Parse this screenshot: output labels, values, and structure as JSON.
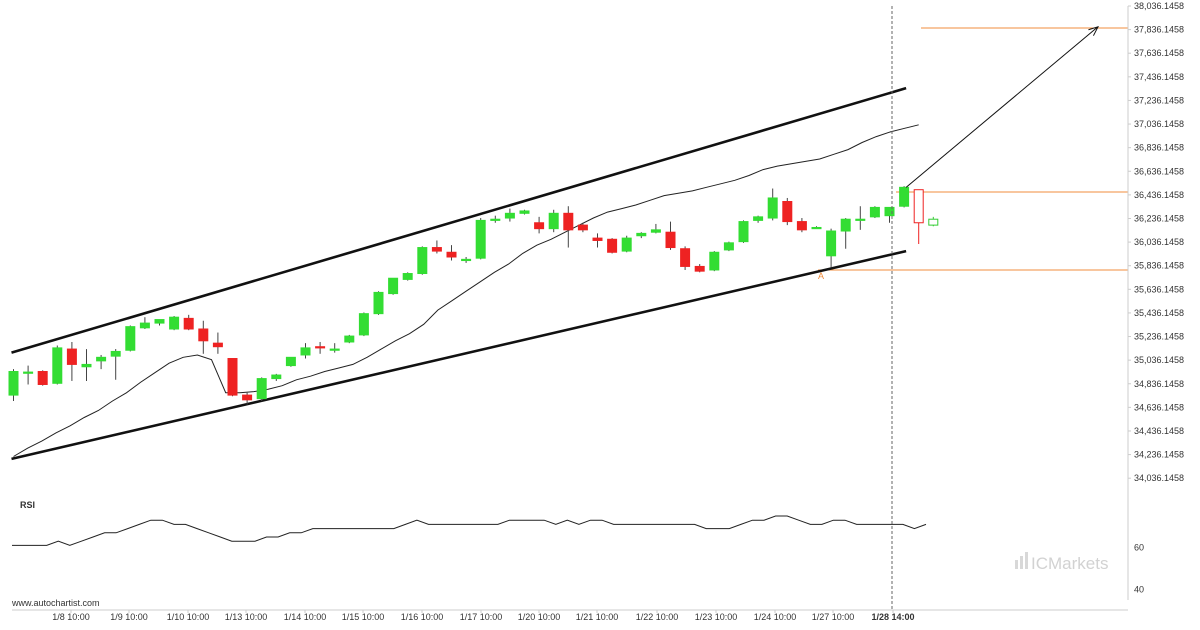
{
  "chart_data": {
    "type": "candlestick",
    "y_axis": {
      "range": [
        33936.1458,
        38036.1458
      ],
      "ticks": [
        "38,036.1458",
        "37,836.1458",
        "37,636.1458",
        "37,436.1458",
        "37,236.1458",
        "37,036.1458",
        "36,836.1458",
        "36,636.1458",
        "36,436.1458",
        "36,236.1458",
        "36,036.1458",
        "35,836.1458",
        "35,636.1458",
        "35,436.1458",
        "35,236.1458",
        "35,036.1458",
        "34,836.1458",
        "34,636.1458",
        "34,436.1458",
        "34,236.1458",
        "34,036.1458"
      ]
    },
    "x_axis": {
      "ticks": [
        "1/8 10:00",
        "1/9 10:00",
        "1/10 10:00",
        "1/13 10:00",
        "1/14 10:00",
        "1/15 10:00",
        "1/16 10:00",
        "1/17 10:00",
        "1/20 10:00",
        "1/21 10:00",
        "1/22 10:00",
        "1/23 10:00",
        "1/24 10:00",
        "1/27 10:00",
        "1/28 14:00"
      ],
      "highlighted": "1/28 14:00"
    },
    "candles": [
      {
        "o": 34740,
        "h": 34960,
        "l": 34690,
        "c": 34940
      },
      {
        "o": 34935,
        "h": 34990,
        "l": 34830,
        "c": 34935
      },
      {
        "o": 34940,
        "h": 34950,
        "l": 34820,
        "c": 34830
      },
      {
        "o": 34840,
        "h": 35160,
        "l": 34830,
        "c": 35140
      },
      {
        "o": 35130,
        "h": 35190,
        "l": 34860,
        "c": 35000
      },
      {
        "o": 34980,
        "h": 35130,
        "l": 34860,
        "c": 35000
      },
      {
        "o": 35030,
        "h": 35080,
        "l": 34960,
        "c": 35060
      },
      {
        "o": 35070,
        "h": 35130,
        "l": 34870,
        "c": 35110
      },
      {
        "o": 35120,
        "h": 35330,
        "l": 35110,
        "c": 35320
      },
      {
        "o": 35310,
        "h": 35400,
        "l": 35300,
        "c": 35350
      },
      {
        "o": 35350,
        "h": 35380,
        "l": 35330,
        "c": 35380
      },
      {
        "o": 35300,
        "h": 35410,
        "l": 35290,
        "c": 35400
      },
      {
        "o": 35390,
        "h": 35420,
        "l": 35290,
        "c": 35300
      },
      {
        "o": 35300,
        "h": 35370,
        "l": 35090,
        "c": 35200
      },
      {
        "o": 35180,
        "h": 35270,
        "l": 35090,
        "c": 35150
      },
      {
        "o": 35050,
        "h": 35050,
        "l": 34730,
        "c": 34740
      },
      {
        "o": 34740,
        "h": 34760,
        "l": 34660,
        "c": 34700
      },
      {
        "o": 34710,
        "h": 34890,
        "l": 34690,
        "c": 34880
      },
      {
        "o": 34880,
        "h": 34920,
        "l": 34860,
        "c": 34910
      },
      {
        "o": 34990,
        "h": 35060,
        "l": 34980,
        "c": 35060
      },
      {
        "o": 35080,
        "h": 35180,
        "l": 35050,
        "c": 35140
      },
      {
        "o": 35150,
        "h": 35190,
        "l": 35090,
        "c": 35140
      },
      {
        "o": 35130,
        "h": 35180,
        "l": 35100,
        "c": 35130
      },
      {
        "o": 35190,
        "h": 35250,
        "l": 35180,
        "c": 35240
      },
      {
        "o": 35250,
        "h": 35440,
        "l": 35240,
        "c": 35430
      },
      {
        "o": 35430,
        "h": 35620,
        "l": 35420,
        "c": 35610
      },
      {
        "o": 35600,
        "h": 35730,
        "l": 35590,
        "c": 35730
      },
      {
        "o": 35720,
        "h": 35780,
        "l": 35710,
        "c": 35770
      },
      {
        "o": 35770,
        "h": 36000,
        "l": 35760,
        "c": 35990
      },
      {
        "o": 35990,
        "h": 36050,
        "l": 35940,
        "c": 35960
      },
      {
        "o": 35950,
        "h": 36010,
        "l": 35880,
        "c": 35910
      },
      {
        "o": 35890,
        "h": 35910,
        "l": 35860,
        "c": 35890
      },
      {
        "o": 35900,
        "h": 36240,
        "l": 35890,
        "c": 36220
      },
      {
        "o": 36220,
        "h": 36260,
        "l": 36200,
        "c": 36230
      },
      {
        "o": 36240,
        "h": 36320,
        "l": 36210,
        "c": 36280
      },
      {
        "o": 36280,
        "h": 36310,
        "l": 36270,
        "c": 36300
      },
      {
        "o": 36200,
        "h": 36250,
        "l": 36110,
        "c": 36150
      },
      {
        "o": 36150,
        "h": 36310,
        "l": 36120,
        "c": 36280
      },
      {
        "o": 36280,
        "h": 36340,
        "l": 35990,
        "c": 36140
      },
      {
        "o": 36180,
        "h": 36200,
        "l": 36120,
        "c": 36140
      },
      {
        "o": 36070,
        "h": 36110,
        "l": 35990,
        "c": 36050
      },
      {
        "o": 36060,
        "h": 36070,
        "l": 35940,
        "c": 35950
      },
      {
        "o": 35960,
        "h": 36090,
        "l": 35950,
        "c": 36070
      },
      {
        "o": 36090,
        "h": 36120,
        "l": 36070,
        "c": 36110
      },
      {
        "o": 36120,
        "h": 36190,
        "l": 36110,
        "c": 36140
      },
      {
        "o": 36120,
        "h": 36210,
        "l": 35970,
        "c": 35990
      },
      {
        "o": 35980,
        "h": 36000,
        "l": 35800,
        "c": 35830
      },
      {
        "o": 35830,
        "h": 35850,
        "l": 35780,
        "c": 35790
      },
      {
        "o": 35800,
        "h": 35960,
        "l": 35790,
        "c": 35950
      },
      {
        "o": 35970,
        "h": 36040,
        "l": 35960,
        "c": 36030
      },
      {
        "o": 36040,
        "h": 36220,
        "l": 36030,
        "c": 36210
      },
      {
        "o": 36220,
        "h": 36260,
        "l": 36200,
        "c": 36250
      },
      {
        "o": 36240,
        "h": 36490,
        "l": 36220,
        "c": 36410
      },
      {
        "o": 36380,
        "h": 36410,
        "l": 36180,
        "c": 36210
      },
      {
        "o": 36210,
        "h": 36240,
        "l": 36120,
        "c": 36140
      },
      {
        "o": 36160,
        "h": 36170,
        "l": 36150,
        "c": 36160
      },
      {
        "o": 35920,
        "h": 36150,
        "l": 35820,
        "c": 36130
      },
      {
        "o": 36130,
        "h": 36240,
        "l": 35980,
        "c": 36230
      },
      {
        "o": 36230,
        "h": 36340,
        "l": 36140,
        "c": 36230
      },
      {
        "o": 36250,
        "h": 36340,
        "l": 36240,
        "c": 36330
      },
      {
        "o": 36260,
        "h": 36330,
        "l": 36200,
        "c": 36330
      },
      {
        "o": 36340,
        "h": 36510,
        "l": 36330,
        "c": 36500
      }
    ],
    "extra_candles": [
      {
        "o": 36480,
        "h": 36480,
        "l": 36020,
        "c": 36200,
        "style": "outline-red"
      },
      {
        "o": 36180,
        "h": 36250,
        "l": 36170,
        "c": 36230,
        "style": "outline-green"
      }
    ],
    "moving_average": [
      34220,
      34290,
      34350,
      34420,
      34480,
      34550,
      34610,
      34690,
      34760,
      34850,
      34930,
      35010,
      35060,
      35080,
      35040,
      34760,
      34760,
      34770,
      34790,
      34820,
      34870,
      34900,
      34940,
      34970,
      35000,
      35060,
      35130,
      35200,
      35260,
      35340,
      35460,
      35540,
      35620,
      35700,
      35780,
      35850,
      35940,
      36010,
      36060,
      36120,
      36180,
      36240,
      36290,
      36320,
      36350,
      36390,
      36430,
      36450,
      36470,
      36500,
      36530,
      36560,
      36600,
      36650,
      36680,
      36700,
      36720,
      36740,
      36780,
      36820,
      36880,
      36930,
      36970,
      37000,
      37030
    ],
    "channel_upper": {
      "start": [
        0,
        35100
      ],
      "end": [
        61,
        37340
      ]
    },
    "channel_lower": {
      "start": [
        0,
        34200
      ],
      "end": [
        61,
        35960
      ]
    },
    "projection_arrow": {
      "start": [
        61,
        36500
      ],
      "end": [
        74,
        37860
      ]
    },
    "levels": [
      37850,
      36460,
      35800
    ],
    "pattern_point_label": "A",
    "rsi": {
      "label": "RSI",
      "ticks": [
        "60",
        "40"
      ],
      "range": [
        35,
        85
      ],
      "values": [
        61,
        61,
        61,
        61,
        63,
        61,
        63,
        65,
        67,
        67,
        69,
        71,
        73,
        73,
        71,
        71,
        69,
        67,
        65,
        63,
        63,
        63,
        65,
        65,
        67,
        67,
        69,
        69,
        69,
        69,
        69,
        69,
        69,
        69,
        71,
        73,
        71,
        71,
        71,
        71,
        71,
        71,
        71,
        73,
        73,
        73,
        73,
        71,
        73,
        71,
        73,
        73,
        71,
        71,
        71,
        71,
        71,
        71,
        71,
        71,
        69,
        69,
        69,
        71,
        73,
        73,
        75,
        75,
        73,
        71,
        71,
        73,
        73,
        71,
        71,
        71,
        71,
        71,
        69,
        71
      ]
    },
    "watermark": "www.autochartist.com",
    "brand": "ICMarkets"
  }
}
